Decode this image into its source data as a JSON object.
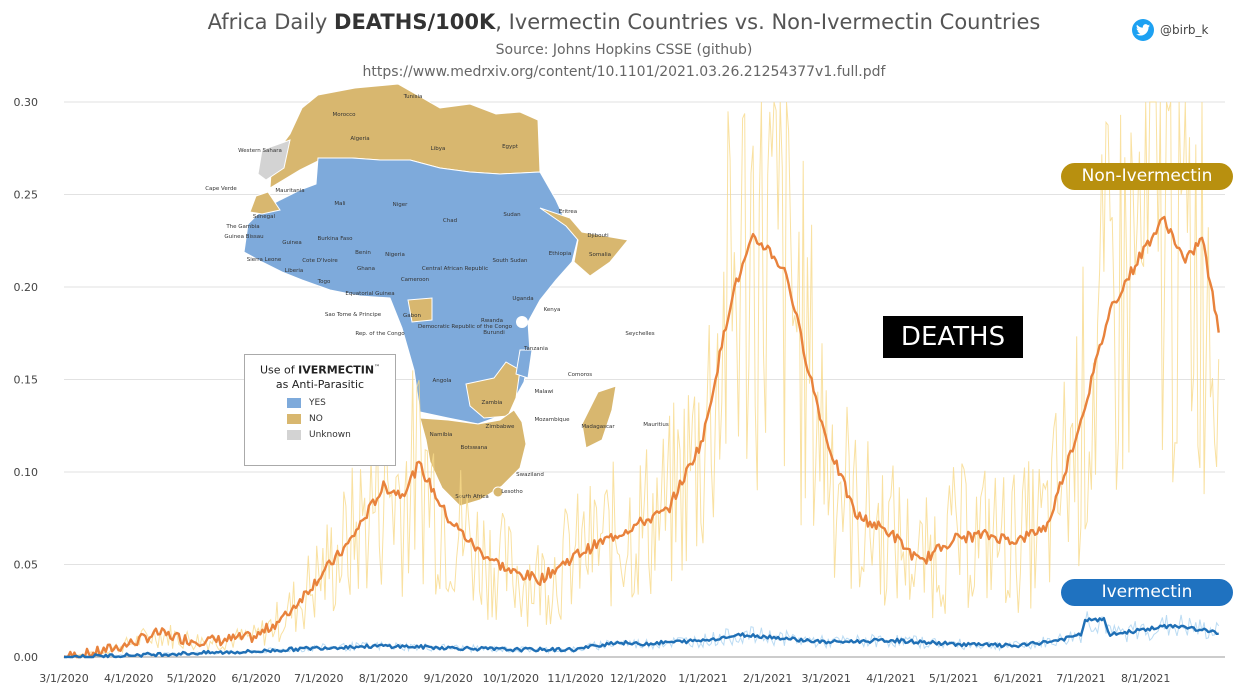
{
  "header": {
    "title_prefix": "Africa Daily ",
    "title_bold": "DEATHS/100K",
    "title_suffix": ", Ivermectin Countries vs. Non-Ivermectin Countries",
    "source": "Source: Johns Hopkins CSSE (github)",
    "url": "https://www.medrxiv.org/content/10.1101/2021.03.26.21254377v1.full.pdf",
    "handle": "@birb_k"
  },
  "labels": {
    "non_ivermectin": "Non-Ivermectin",
    "ivermectin": "Ivermectin",
    "deaths": "DEATHS"
  },
  "map_legend": {
    "title_prefix": "Use of ",
    "title_bold": "IVERMECTIN",
    "title_tm": "™",
    "title_line2": "as Anti-Parasitic",
    "yes": "YES",
    "no": "NO",
    "unknown": "Unknown"
  },
  "map_labels": [
    "Tunisia",
    "Morocco",
    "Algeria",
    "Libya",
    "Egypt",
    "Western Sahara",
    "Mauritania",
    "Mali",
    "Niger",
    "Chad",
    "Sudan",
    "Eritrea",
    "Djibouti",
    "Somalia",
    "Ethiopia",
    "South Sudan",
    "Central African Republic",
    "Nigeria",
    "Benin",
    "Togo",
    "Burkina Faso",
    "Cote D'Ivoire",
    "Ghana",
    "Liberia",
    "Sierra Leone",
    "Guinea",
    "Guinea Bissau",
    "The Gambia",
    "Senegal",
    "Cape Verde",
    "Cameroon",
    "Equatorial Guinea",
    "Gabon",
    "Sao Tome & Principe",
    "Rep. of the Congo",
    "Democratic Republic of the Congo",
    "Uganda",
    "Kenya",
    "Rwanda",
    "Burundi",
    "Tanzania",
    "Seychelles",
    "Comoros",
    "Angola",
    "Zambia",
    "Malawi",
    "Mozambique",
    "Madagascar",
    "Mauritius",
    "Namibia",
    "Zimbabwe",
    "Botswana",
    "Swaziland",
    "Lesotho",
    "South Africa"
  ],
  "colors": {
    "non_ivermectin": "#e8823c",
    "non_ivermectin_raw": "#f7d98a",
    "ivermectin": "#1f6fb5",
    "ivermectin_raw": "#a9d2f0",
    "map_yes": "#7eaadb",
    "map_no": "#d8b76f",
    "map_unknown": "#d3d3d3",
    "badge_non": "#b8900f",
    "badge_iv": "#1f72c0"
  },
  "chart_data": {
    "type": "line",
    "x": [
      "3/1/2020",
      "4/1/2020",
      "5/1/2020",
      "6/1/2020",
      "7/1/2020",
      "8/1/2020",
      "9/1/2020",
      "10/1/2020",
      "11/1/2020",
      "12/1/2020",
      "1/1/2021",
      "2/1/2021",
      "3/1/2021",
      "4/1/2021",
      "5/1/2021",
      "6/1/2021",
      "7/1/2021",
      "8/1/2021"
    ],
    "ylim": [
      0,
      0.3
    ],
    "yticks": [
      "0.00",
      "0.05",
      "0.10",
      "0.15",
      "0.20",
      "0.25",
      "0.30"
    ],
    "series": [
      {
        "name": "Non-Ivermectin",
        "points": [
          [
            "3/1/2020",
            0.0
          ],
          [
            "3/15/2020",
            0.002
          ],
          [
            "4/1/2020",
            0.007
          ],
          [
            "4/15/2020",
            0.013
          ],
          [
            "5/1/2020",
            0.009
          ],
          [
            "5/15/2020",
            0.009
          ],
          [
            "6/1/2020",
            0.011
          ],
          [
            "6/15/2020",
            0.022
          ],
          [
            "7/1/2020",
            0.043
          ],
          [
            "7/15/2020",
            0.061
          ],
          [
            "8/1/2020",
            0.092
          ],
          [
            "8/10/2020",
            0.088
          ],
          [
            "8/18/2020",
            0.104
          ],
          [
            "9/1/2020",
            0.075
          ],
          [
            "9/15/2020",
            0.058
          ],
          [
            "10/1/2020",
            0.046
          ],
          [
            "10/15/2020",
            0.042
          ],
          [
            "11/1/2020",
            0.055
          ],
          [
            "11/15/2020",
            0.063
          ],
          [
            "12/1/2020",
            0.072
          ],
          [
            "12/15/2020",
            0.079
          ],
          [
            "1/1/2021",
            0.118
          ],
          [
            "1/15/2021",
            0.196
          ],
          [
            "1/25/2021",
            0.226
          ],
          [
            "2/1/2021",
            0.221
          ],
          [
            "2/10/2021",
            0.207
          ],
          [
            "2/20/2021",
            0.158
          ],
          [
            "3/1/2021",
            0.118
          ],
          [
            "3/15/2021",
            0.077
          ],
          [
            "4/1/2021",
            0.067
          ],
          [
            "4/15/2021",
            0.051
          ],
          [
            "5/1/2021",
            0.064
          ],
          [
            "5/15/2021",
            0.066
          ],
          [
            "6/1/2021",
            0.063
          ],
          [
            "6/15/2021",
            0.071
          ],
          [
            "7/1/2021",
            0.128
          ],
          [
            "7/15/2021",
            0.188
          ],
          [
            "8/1/2021",
            0.222
          ],
          [
            "8/10/2021",
            0.237
          ],
          [
            "8/20/2021",
            0.213
          ],
          [
            "8/28/2021",
            0.227
          ],
          [
            "9/5/2021",
            0.176
          ]
        ]
      },
      {
        "name": "Ivermectin",
        "points": [
          [
            "3/1/2020",
            0.0
          ],
          [
            "4/1/2020",
            0.001
          ],
          [
            "5/1/2020",
            0.002
          ],
          [
            "6/1/2020",
            0.003
          ],
          [
            "7/1/2020",
            0.005
          ],
          [
            "8/1/2020",
            0.006
          ],
          [
            "9/1/2020",
            0.005
          ],
          [
            "10/1/2020",
            0.004
          ],
          [
            "11/1/2020",
            0.004
          ],
          [
            "11/20/2020",
            0.008
          ],
          [
            "12/1/2020",
            0.007
          ],
          [
            "1/1/2021",
            0.009
          ],
          [
            "1/20/2021",
            0.012
          ],
          [
            "2/1/2021",
            0.011
          ],
          [
            "3/1/2021",
            0.008
          ],
          [
            "4/1/2021",
            0.009
          ],
          [
            "5/1/2021",
            0.007
          ],
          [
            "6/1/2021",
            0.006
          ],
          [
            "6/20/2021",
            0.009
          ],
          [
            "7/1/2021",
            0.012
          ],
          [
            "7/3/2021",
            0.02
          ],
          [
            "7/12/2021",
            0.02
          ],
          [
            "7/15/2021",
            0.012
          ],
          [
            "8/1/2021",
            0.015
          ],
          [
            "8/15/2021",
            0.017
          ],
          [
            "9/5/2021",
            0.013
          ]
        ]
      }
    ]
  }
}
